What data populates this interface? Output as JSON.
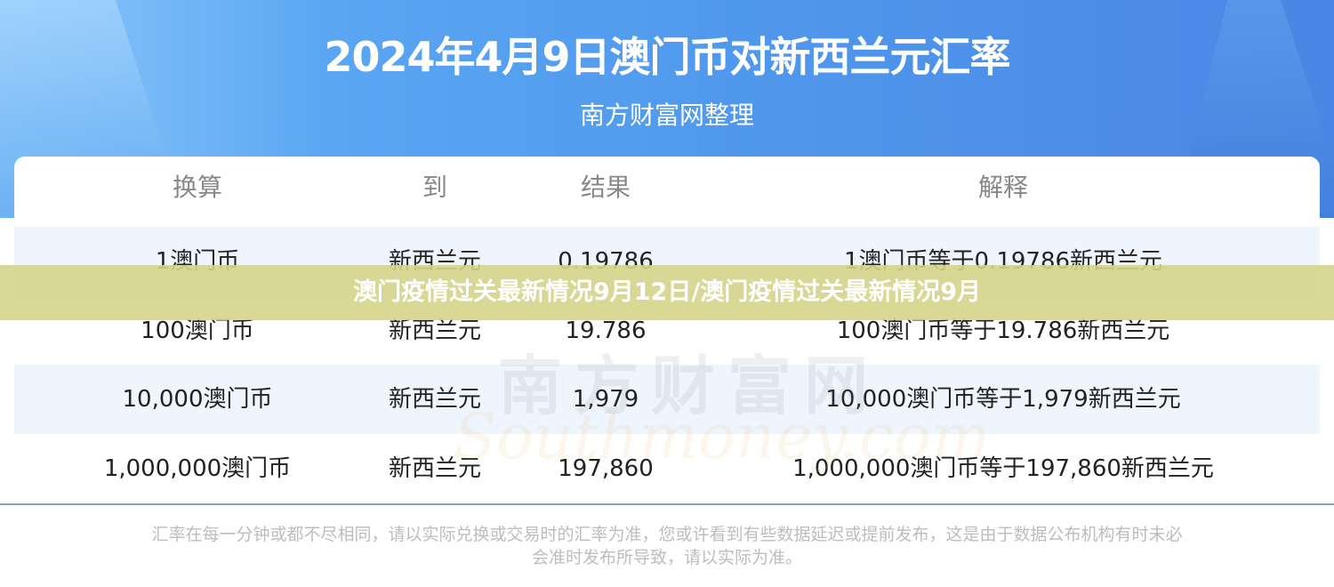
{
  "header": {
    "title": "2024年4月9日澳门币对新西兰元汇率",
    "subtitle": "南方财富网整理"
  },
  "table": {
    "columns": [
      "换算",
      "到",
      "结果",
      "解释"
    ],
    "rows": [
      [
        "1澳门币",
        "新西兰元",
        "0.19786",
        "1澳门币等于0.19786新西兰元"
      ],
      [
        "100澳门币",
        "新西兰元",
        "19.786",
        "100澳门币等于19.786新西兰元"
      ],
      [
        "10,000澳门币",
        "新西兰元",
        "1,979",
        "10,000澳门币等于1,979新西兰元"
      ],
      [
        "1,000,000澳门币",
        "新西兰元",
        "197,860",
        "1,000,000澳门币等于197,860新西兰元"
      ]
    ]
  },
  "watermark": {
    "cn": "南方财富网",
    "en": "Southmoney.com"
  },
  "footer": {
    "line1": "汇率在每一分钟或都不尽相同，请以实际兑换或交易时的汇率为准，您或许看到有些数据延迟或提前发布，这是由于数据公布机构有时未必",
    "line2": "会准时发布所导致，请以实际为准。"
  },
  "banner": {
    "text": "澳门疫情过关最新情况9月12日/澳门疫情过关最新情况9月"
  },
  "colors": {
    "header_blue": "#4f96ec",
    "row_alt": "#eef5fd",
    "banner": "#d6d48a"
  }
}
